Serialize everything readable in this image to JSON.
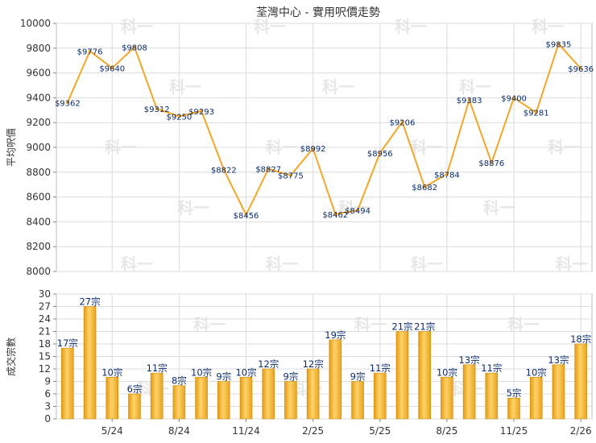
{
  "chart_data": [
    {
      "type": "line",
      "title": "荃灣中心 - 實用呎價走勢",
      "ylabel": "平均呎價",
      "ylim": [
        8000,
        10000
      ],
      "yticks": [
        8000,
        8200,
        8400,
        8600,
        8800,
        9000,
        9200,
        9400,
        9600,
        9800,
        10000
      ],
      "color": "#f5a623",
      "values": [
        9362,
        9776,
        9640,
        9808,
        9312,
        9250,
        9293,
        8822,
        8456,
        8827,
        8775,
        8992,
        8462,
        8494,
        8956,
        9206,
        8682,
        8784,
        9383,
        8876,
        9400,
        9281,
        9835,
        9636
      ],
      "labels": [
        "$9362",
        "$9776",
        "$9640",
        "$9808",
        "$9312",
        "$9250",
        "$9293",
        "$8822",
        "$8456",
        "$8827",
        "$8775",
        "$8992",
        "$8462",
        "$8494",
        "$8956",
        "$9206",
        "$8682",
        "$8784",
        "$9383",
        "$8876",
        "$9400",
        "$9281",
        "$9835",
        "$9636"
      ],
      "grid": true
    },
    {
      "type": "bar",
      "ylabel": "成交宗數",
      "ylim": [
        0,
        30
      ],
      "yticks": [
        0,
        3,
        6,
        9,
        12,
        15,
        18,
        21,
        24,
        27,
        30
      ],
      "color": "#f5a623",
      "values": [
        17,
        27,
        10,
        6,
        11,
        8,
        10,
        9,
        10,
        12,
        9,
        12,
        19,
        9,
        11,
        21,
        21,
        10,
        13,
        11,
        5,
        10,
        13,
        18
      ],
      "labels": [
        "17宗",
        "27宗",
        "10宗",
        "6宗",
        "11宗",
        "8宗",
        "10宗",
        "9宗",
        "10宗",
        "12宗",
        "9宗",
        "12宗",
        "19宗",
        "9宗",
        "11宗",
        "21宗",
        "21宗",
        "10宗",
        "13宗",
        "11宗",
        "5宗",
        "10宗",
        "13宗",
        "18宗"
      ],
      "x_tick_labels": [
        {
          "index": 2,
          "label": "5/24"
        },
        {
          "index": 5,
          "label": "8/24"
        },
        {
          "index": 8,
          "label": "11/24"
        },
        {
          "index": 11,
          "label": "2/25"
        },
        {
          "index": 14,
          "label": "5/25"
        },
        {
          "index": 17,
          "label": "8/25"
        },
        {
          "index": 20,
          "label": "11/25"
        },
        {
          "index": 23,
          "label": "2/26"
        }
      ],
      "grid": true
    }
  ],
  "watermark": "科一"
}
